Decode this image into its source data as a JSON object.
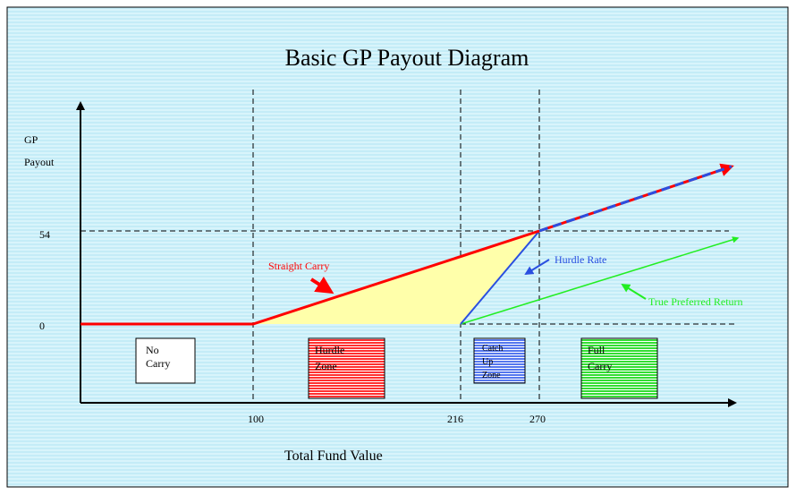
{
  "title": "Basic GP Payout Diagram",
  "y_axis_label": [
    "GP",
    "Payout"
  ],
  "y_labels": [
    "54",
    "0"
  ],
  "x_labels": [
    "100",
    "216",
    "270"
  ],
  "x_axis_label": "Total Fund Value",
  "zones": [
    {
      "label": [
        "No",
        "Carry"
      ]
    },
    {
      "label": [
        "Hurdle",
        "Zone"
      ]
    },
    {
      "label": [
        "Catch",
        "Up",
        "Zone"
      ]
    },
    {
      "label": [
        "Full",
        "Carry"
      ]
    }
  ],
  "annotations": [
    "Straight Carry",
    "Hurdle Rate",
    "True Preferred Return"
  ]
}
